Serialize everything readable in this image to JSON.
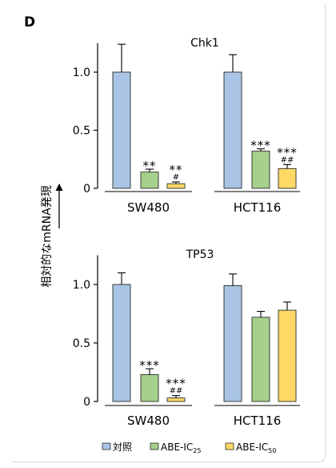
{
  "panel_letter": "D",
  "y_axis_title": "相対的なmRNA発現",
  "legend": [
    {
      "label": "対照",
      "sub": "",
      "color": "#A9C4E4"
    },
    {
      "label": "ABE-IC",
      "sub": "25",
      "color": "#A7D08C"
    },
    {
      "label": "ABE-IC",
      "sub": "50",
      "color": "#FFD966"
    }
  ],
  "chart_data": [
    {
      "type": "bar",
      "title": "Chk1",
      "groups": [
        "SW480",
        "HCT116"
      ],
      "series": [
        {
          "name": "対照",
          "values": [
            1.0,
            1.0
          ],
          "errors": [
            0.24,
            0.15
          ],
          "color": "#A9C4E4"
        },
        {
          "name": "ABE-IC25",
          "values": [
            0.14,
            0.32
          ],
          "errors": [
            0.025,
            0.02
          ],
          "color": "#A7D08C"
        },
        {
          "name": "ABE-IC50",
          "values": [
            0.04,
            0.17
          ],
          "errors": [
            0.015,
            0.035
          ],
          "color": "#FFD966"
        }
      ],
      "annotations": [
        [
          "",
          ""
        ],
        [
          "**",
          "***"
        ],
        [
          "**\n#",
          "***\n##"
        ]
      ],
      "ylim": [
        0,
        1.25
      ],
      "yticks": [
        "0",
        "0.5",
        "1.0"
      ],
      "grid": false
    },
    {
      "type": "bar",
      "title": "TP53",
      "groups": [
        "SW480",
        "HCT116"
      ],
      "series": [
        {
          "name": "対照",
          "values": [
            1.0,
            0.99
          ],
          "errors": [
            0.1,
            0.1
          ],
          "color": "#A9C4E4"
        },
        {
          "name": "ABE-IC25",
          "values": [
            0.23,
            0.72
          ],
          "errors": [
            0.05,
            0.05
          ],
          "color": "#A7D08C"
        },
        {
          "name": "ABE-IC50",
          "values": [
            0.03,
            0.78
          ],
          "errors": [
            0.02,
            0.07
          ],
          "color": "#FFD966"
        }
      ],
      "annotations": [
        [
          "",
          ""
        ],
        [
          "***",
          ""
        ],
        [
          "***\n##",
          ""
        ]
      ],
      "ylim": [
        0,
        1.25
      ],
      "yticks": [
        "0",
        "0.5",
        "1.0"
      ],
      "grid": false
    }
  ]
}
